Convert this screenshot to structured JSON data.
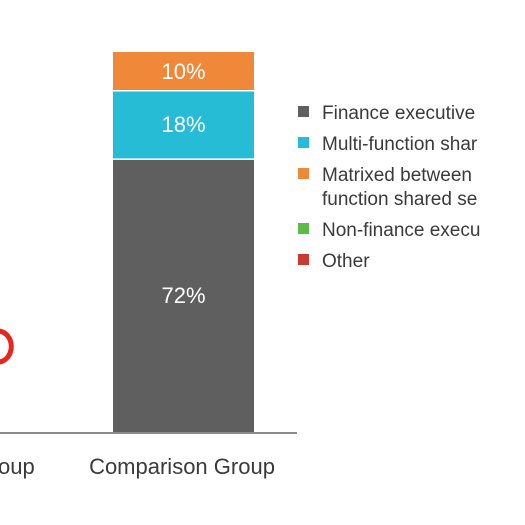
{
  "chart_data": {
    "type": "bar",
    "stacked": true,
    "categories": [
      "…oup",
      "Comparison Group"
    ],
    "series": [
      {
        "name": "Finance executive",
        "color": "#5f5f5f",
        "values": [
          null,
          72
        ]
      },
      {
        "name": "Multi-function shar…",
        "color": "#27bcd6",
        "values": [
          null,
          18
        ]
      },
      {
        "name": "Matrixed between … function shared se…",
        "color": "#f0883a",
        "values": [
          null,
          10
        ]
      },
      {
        "name": "Non-finance execu…",
        "color": "#5dbb46",
        "values": [
          null,
          null
        ]
      },
      {
        "name": "Other",
        "color": "#c83a32",
        "values": [
          null,
          null
        ]
      }
    ],
    "data_labels": [
      "72%",
      "18%",
      "10%"
    ],
    "ylim": [
      0,
      100
    ],
    "legend_position": "right",
    "grid": false
  },
  "legend": {
    "items": [
      {
        "lines": [
          "Finance executive"
        ],
        "color": "#5f5f5f"
      },
      {
        "lines": [
          "Multi-function shar"
        ],
        "color": "#27bcd6"
      },
      {
        "lines": [
          "Matrixed between",
          "function shared se"
        ],
        "color": "#f0883a"
      },
      {
        "lines": [
          "Non-finance execu"
        ],
        "color": "#5dbb46"
      },
      {
        "lines": [
          "Other"
        ],
        "color": "#c83a32"
      }
    ]
  },
  "axis": {
    "category_labels": [
      "oup",
      "Comparison Group"
    ]
  },
  "partial_marker_color": "#e8261e"
}
